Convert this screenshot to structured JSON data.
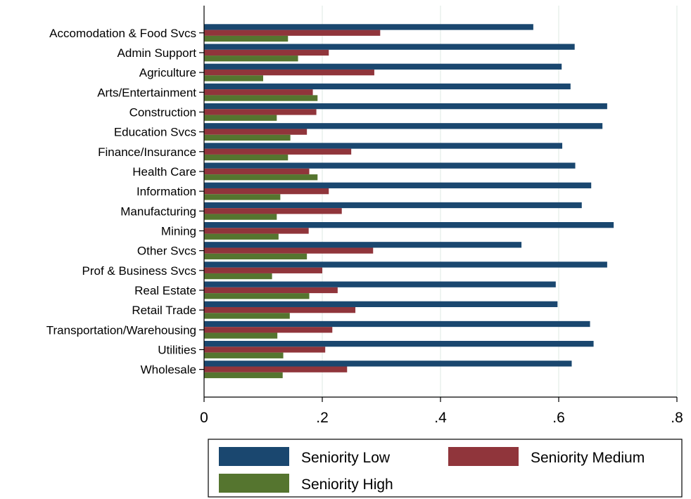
{
  "chart_data": {
    "type": "bar",
    "orientation": "horizontal",
    "categories": [
      "Accomodation & Food Svcs",
      "Admin Support",
      "Agriculture",
      "Arts/Entertainment",
      "Construction",
      "Education Svcs",
      "Finance/Insurance",
      "Health Care",
      "Information",
      "Manufacturing",
      "Mining",
      "Other Svcs",
      "Prof & Business Svcs",
      "Real Estate",
      "Retail Trade",
      "Transportation/Warehousing",
      "Utilities",
      "Wholesale"
    ],
    "series": [
      {
        "name": "Seniority Low",
        "color": "#1a476f",
        "values": [
          0.557,
          0.627,
          0.605,
          0.62,
          0.682,
          0.674,
          0.606,
          0.628,
          0.655,
          0.639,
          0.693,
          0.537,
          0.682,
          0.595,
          0.598,
          0.653,
          0.659,
          0.622
        ]
      },
      {
        "name": "Seniority Medium",
        "color": "#90353b",
        "values": [
          0.298,
          0.211,
          0.288,
          0.184,
          0.19,
          0.174,
          0.249,
          0.178,
          0.211,
          0.233,
          0.177,
          0.286,
          0.2,
          0.226,
          0.256,
          0.217,
          0.205,
          0.242
        ]
      },
      {
        "name": "Seniority High",
        "color": "#55752f",
        "values": [
          0.142,
          0.159,
          0.1,
          0.192,
          0.123,
          0.146,
          0.142,
          0.192,
          0.129,
          0.123,
          0.126,
          0.174,
          0.115,
          0.178,
          0.145,
          0.124,
          0.134,
          0.133
        ]
      }
    ],
    "xlim": [
      0,
      0.8
    ],
    "xticks": [
      0,
      0.2,
      0.4,
      0.6,
      0.8
    ],
    "xtick_labels": [
      "0",
      ".2",
      ".4",
      ".6",
      ".8"
    ],
    "grid": true,
    "legend": "bottom",
    "title": "",
    "xlabel": "",
    "ylabel": ""
  }
}
